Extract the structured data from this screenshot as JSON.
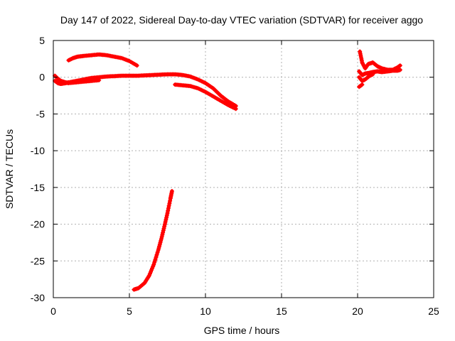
{
  "chart_data": {
    "type": "scatter",
    "title": "Day 147 of 2022, Sidereal Day-to-day VTEC variation (SDTVAR) for receiver aggo",
    "xlabel": "GPS time / hours",
    "ylabel": "SDTVAR / TECUs",
    "xlim": [
      0,
      25
    ],
    "ylim": [
      -30,
      5
    ],
    "xticks": [
      0,
      5,
      10,
      15,
      20,
      25
    ],
    "yticks": [
      5,
      0,
      -5,
      -10,
      -15,
      -20,
      -25,
      -30
    ],
    "grid": true,
    "marker": "+",
    "color": "#ff0000",
    "series": [
      {
        "name": "arc-1",
        "x": [
          0.1,
          0.3,
          0.5,
          0.8,
          1.0,
          1.5,
          2.0,
          2.5,
          3.0,
          3.5,
          4.0,
          4.5,
          5.0,
          5.5,
          6.0,
          6.5,
          7.0,
          7.5,
          8.0,
          8.5,
          9.0,
          9.5,
          10.0,
          10.5,
          11.0,
          11.5,
          12.0
        ],
        "y": [
          -0.5,
          -0.8,
          -0.9,
          -0.8,
          -0.7,
          -0.5,
          -0.3,
          -0.1,
          0.0,
          0.1,
          0.15,
          0.2,
          0.2,
          0.2,
          0.25,
          0.3,
          0.35,
          0.4,
          0.4,
          0.3,
          0.1,
          -0.3,
          -0.8,
          -1.5,
          -2.5,
          -3.3,
          -3.9
        ]
      },
      {
        "name": "arc-2",
        "x": [
          0.1,
          0.3,
          0.5,
          0.8,
          1.0,
          1.5,
          2.0,
          2.5,
          3.0
        ],
        "y": [
          0.2,
          -0.2,
          -0.5,
          -0.7,
          -0.8,
          -0.7,
          -0.6,
          -0.5,
          -0.4
        ]
      },
      {
        "name": "arc-3",
        "x": [
          1.0,
          1.3,
          1.6,
          2.0,
          2.5,
          3.0,
          3.5,
          4.0,
          4.5,
          5.0,
          5.5
        ],
        "y": [
          2.3,
          2.6,
          2.8,
          2.9,
          3.0,
          3.1,
          3.0,
          2.8,
          2.6,
          2.2,
          1.6
        ]
      },
      {
        "name": "arc-4",
        "x": [
          8.0,
          8.5,
          9.0,
          9.5,
          10.0,
          10.5,
          11.0,
          11.5,
          12.0
        ],
        "y": [
          -1.0,
          -1.1,
          -1.2,
          -1.5,
          -2.0,
          -2.6,
          -3.2,
          -3.8,
          -4.3
        ]
      },
      {
        "name": "arc-5",
        "x": [
          5.3,
          5.6,
          6.0,
          6.3,
          6.6,
          6.9,
          7.1,
          7.3,
          7.5,
          7.7,
          7.8
        ],
        "y": [
          -28.9,
          -28.7,
          -28.0,
          -27.0,
          -25.5,
          -23.5,
          -22.0,
          -20.3,
          -18.5,
          -16.5,
          -15.5
        ]
      },
      {
        "name": "arc-6",
        "x": [
          20.15,
          20.3,
          20.5,
          20.7,
          21.0,
          21.3,
          21.6,
          22.0,
          22.3,
          22.6,
          22.8
        ],
        "y": [
          3.5,
          2.0,
          1.2,
          1.8,
          2.0,
          1.5,
          1.2,
          1.0,
          1.0,
          1.3,
          1.6
        ]
      },
      {
        "name": "arc-7",
        "x": [
          20.1,
          20.3,
          20.5,
          20.8,
          21.0,
          21.3,
          21.6,
          22.0,
          22.3,
          22.6,
          22.8
        ],
        "y": [
          0.8,
          0.3,
          0.5,
          0.6,
          0.7,
          0.8,
          0.7,
          0.8,
          0.9,
          0.9,
          1.0
        ]
      },
      {
        "name": "arc-8",
        "x": [
          20.1,
          20.3,
          20.5,
          20.8,
          21.0
        ],
        "y": [
          0.0,
          -0.5,
          -0.3,
          0.2,
          0.4
        ]
      },
      {
        "name": "arc-9",
        "x": [
          20.1,
          20.3
        ],
        "y": [
          -1.3,
          -1.0
        ]
      }
    ]
  }
}
